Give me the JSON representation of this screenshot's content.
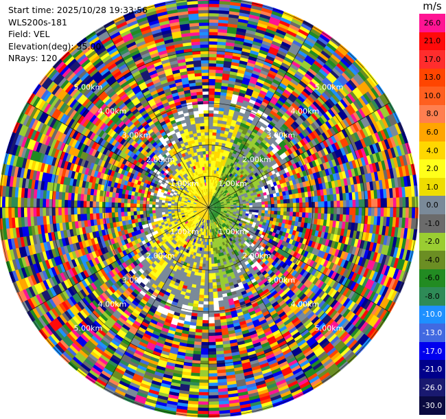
{
  "info": {
    "start_time": "Start time: 2025/10/28 19:33:56",
    "site": "WLS200s-181",
    "field": "Field: VEL",
    "elevation": "Elevation(deg): 35.00",
    "nrays": "NRays: 120"
  },
  "chart_data": {
    "type": "ppi-polar-heatmap",
    "field": "VEL",
    "elevation_deg": 35.0,
    "nrays": 120,
    "unit": "m/s",
    "max_range_km": 6.0,
    "ring_labels": [
      "1.00km",
      "2.00km",
      "3.00km",
      "4.00km",
      "5.00km"
    ],
    "colorbar": {
      "title": "m/s",
      "ticks": [
        "26.0",
        "21.0",
        "17.0",
        "13.0",
        "10.0",
        "8.0",
        "6.0",
        "4.0",
        "2.0",
        "1.0",
        "0.0",
        "-1.0",
        "-2.0",
        "-4.0",
        "-6.0",
        "-8.0",
        "-10.0",
        "-13.0",
        "-17.0",
        "-21.0",
        "-26.0",
        "-30.0"
      ],
      "colors": [
        "#ff1493",
        "#ff0a0a",
        "#ff2d2d",
        "#ff4500",
        "#ff5f1f",
        "#ff7f50",
        "#ffa500",
        "#ffd700",
        "#ffff1a",
        "#eedd00",
        "#7a8a99",
        "#6b6b6b",
        "#9acd32",
        "#6b8e23",
        "#228b22",
        "#2e8b57",
        "#1e90ff",
        "#4169e1",
        "#0000ee",
        "#00008b",
        "#191970",
        "#0a0a40"
      ]
    }
  }
}
